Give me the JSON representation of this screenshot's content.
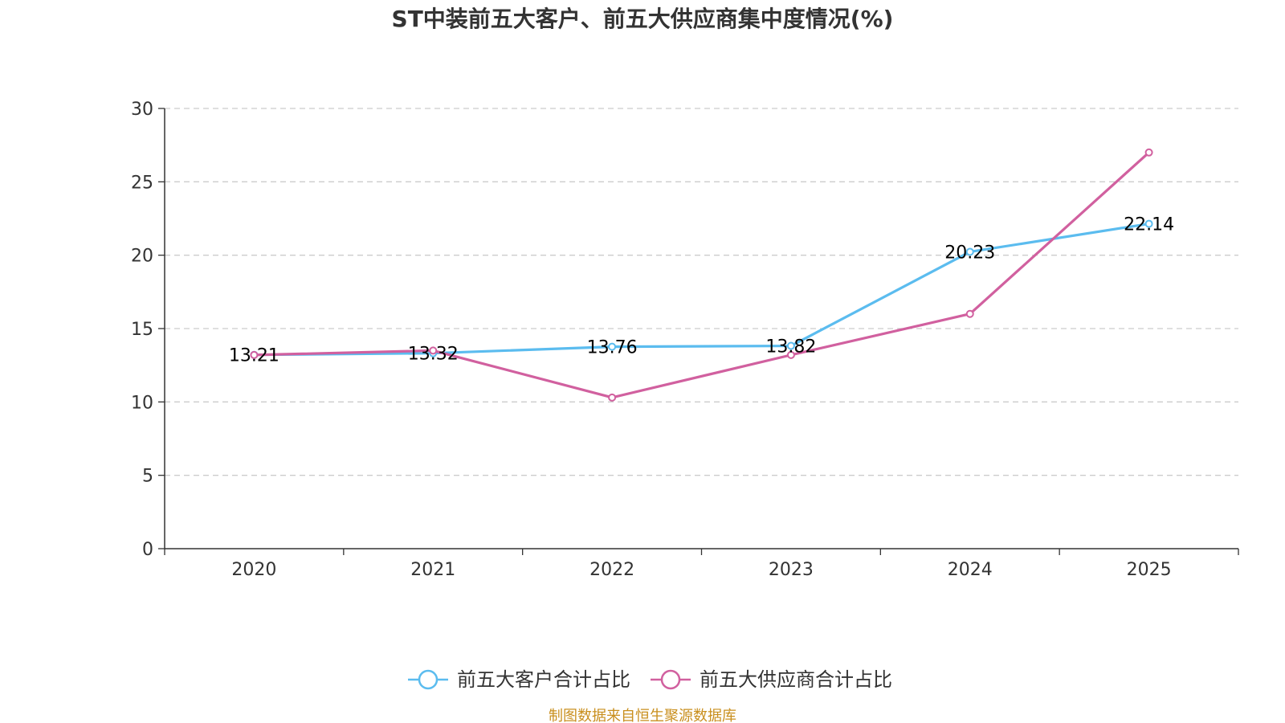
{
  "chart_data": {
    "type": "line",
    "title": "ST中装前五大客户、前五大供应商集中度情况(%)",
    "categories": [
      "2020",
      "2021",
      "2022",
      "2023",
      "2024",
      "2025"
    ],
    "ylim": [
      0,
      30
    ],
    "yticks": [
      0,
      5,
      10,
      15,
      20,
      25,
      30
    ],
    "grid": true,
    "legend_position": "bottom-center",
    "series": [
      {
        "name": "前五大客户合计占比",
        "color": "#5bbcef",
        "values": [
          13.21,
          13.32,
          13.76,
          13.82,
          20.23,
          22.14
        ],
        "labels": [
          "13.21",
          "13.32",
          "13.76",
          "13.82",
          "20.23",
          "22.14"
        ]
      },
      {
        "name": "前五大供应商合计占比",
        "color": "#d1609f",
        "values": [
          13.2,
          13.5,
          10.3,
          13.2,
          16.0,
          27.0
        ]
      }
    ]
  },
  "source": "制图数据来自恒生聚源数据库"
}
